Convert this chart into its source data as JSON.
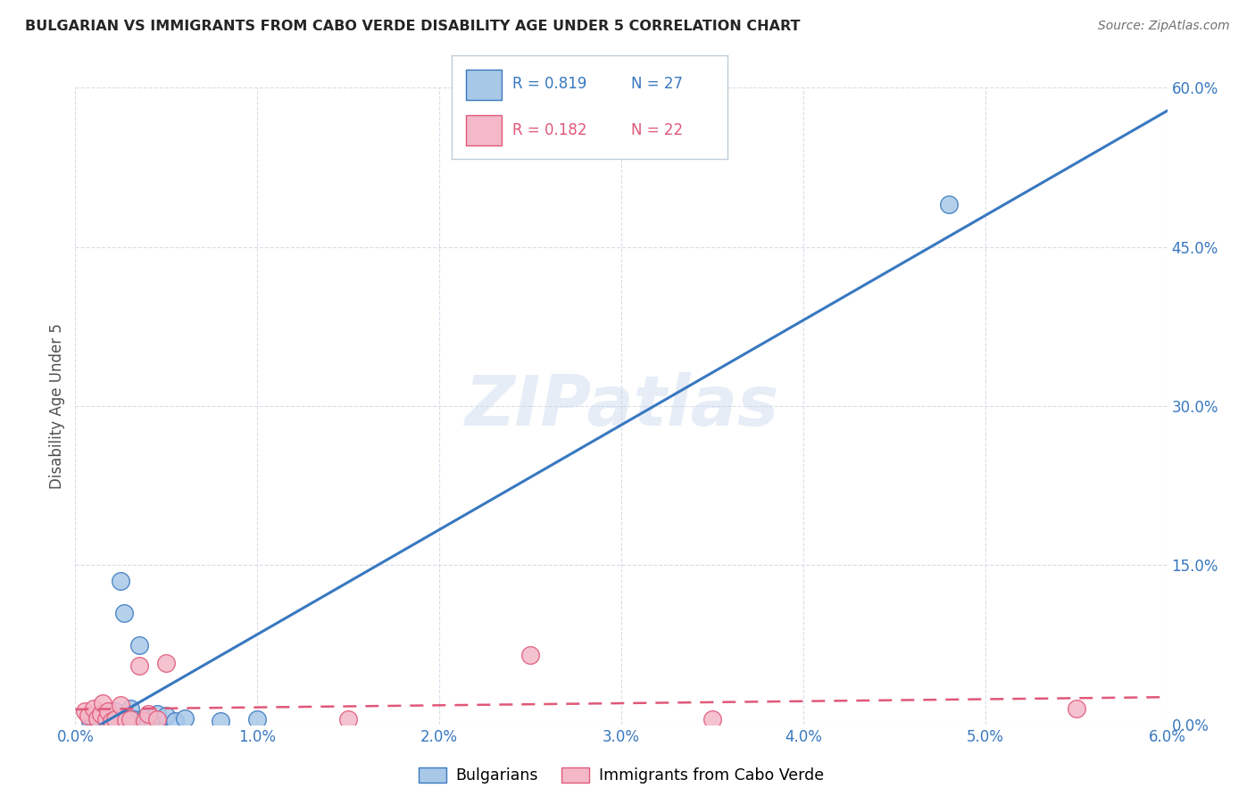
{
  "title": "BULGARIAN VS IMMIGRANTS FROM CABO VERDE DISABILITY AGE UNDER 5 CORRELATION CHART",
  "source": "Source: ZipAtlas.com",
  "ylabel": "Disability Age Under 5",
  "x_ticks": [
    0.0,
    1.0,
    2.0,
    3.0,
    4.0,
    5.0,
    6.0
  ],
  "y_ticks": [
    0.0,
    15.0,
    30.0,
    45.0,
    60.0
  ],
  "xlim": [
    0.0,
    6.0
  ],
  "ylim": [
    0.0,
    60.0
  ],
  "legend_r_blue": "R = 0.819",
  "legend_n_blue": "N = 27",
  "legend_r_pink": "R = 0.182",
  "legend_n_pink": "N = 22",
  "legend_label_blue": "Bulgarians",
  "legend_label_pink": "Immigrants from Cabo Verde",
  "blue_scatter_color": "#a8c8e8",
  "pink_scatter_color": "#f4b8c8",
  "blue_line_color": "#3878c0",
  "pink_line_color": "#e05878",
  "grid_color": "#d8dde8",
  "background_color": "#ffffff",
  "watermark_text": "ZIPatlas",
  "bulgarians_x": [
    0.08,
    0.1,
    0.12,
    0.14,
    0.16,
    0.17,
    0.18,
    0.19,
    0.2,
    0.21,
    0.22,
    0.23,
    0.25,
    0.27,
    0.3,
    0.32,
    0.35,
    0.38,
    0.4,
    0.42,
    0.45,
    0.5,
    0.55,
    0.6,
    0.8,
    1.0,
    4.8
  ],
  "bulgarians_y": [
    0.3,
    0.4,
    0.5,
    0.3,
    0.5,
    0.3,
    0.8,
    1.0,
    0.6,
    0.8,
    1.2,
    0.4,
    13.5,
    10.5,
    1.5,
    0.5,
    7.5,
    0.6,
    0.3,
    0.5,
    1.0,
    0.8,
    0.3,
    0.6,
    0.3,
    0.5,
    49.0
  ],
  "cabo_verde_x": [
    0.05,
    0.07,
    0.1,
    0.12,
    0.14,
    0.15,
    0.17,
    0.18,
    0.2,
    0.22,
    0.25,
    0.28,
    0.3,
    0.35,
    0.38,
    0.4,
    0.45,
    0.5,
    1.5,
    2.5,
    3.5,
    5.5
  ],
  "cabo_verde_y": [
    1.2,
    0.8,
    1.5,
    0.6,
    1.0,
    2.0,
    0.5,
    1.2,
    0.3,
    0.5,
    1.8,
    0.4,
    0.5,
    5.5,
    0.3,
    1.0,
    0.5,
    5.8,
    0.5,
    6.5,
    0.5,
    1.5
  ]
}
